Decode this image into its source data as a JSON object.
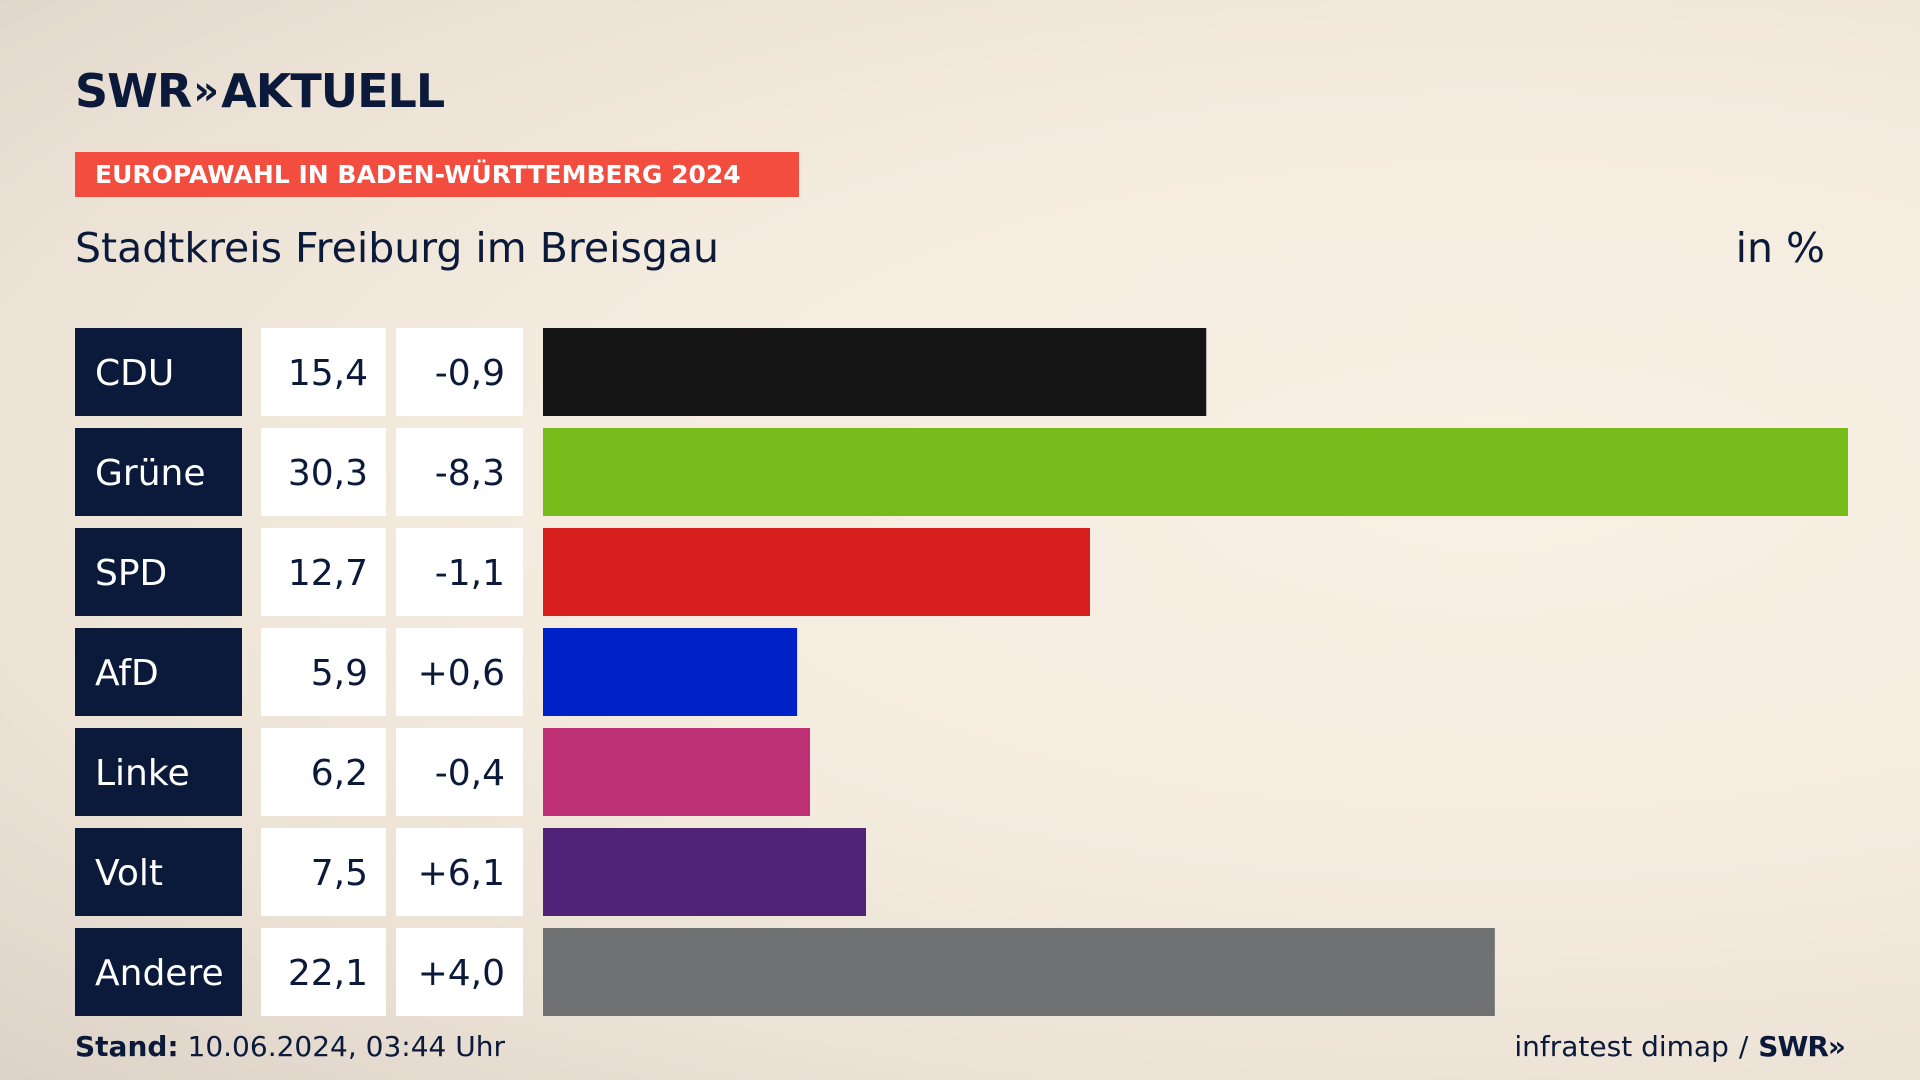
{
  "header": {
    "logo_swr": "SWR",
    "logo_chevrons": "»",
    "logo_aktuell": "AKTUELL",
    "banner": "EUROPAWAHL IN BADEN-WÜRTTEMBERG 2024",
    "title": "Stadtkreis Freiburg im Breisgau",
    "unit": "in %"
  },
  "chart_data": {
    "type": "bar",
    "orientation": "horizontal",
    "categories": [
      "CDU",
      "Grüne",
      "SPD",
      "AfD",
      "Linke",
      "Volt",
      "Andere"
    ],
    "values": [
      15.4,
      30.3,
      12.7,
      5.9,
      6.2,
      7.5,
      22.1
    ],
    "value_labels": [
      "15,4",
      "30,3",
      "12,7",
      "5,9",
      "6,2",
      "7,5",
      "22,1"
    ],
    "change_labels": [
      "-0,9",
      "-8,3",
      "-1,1",
      "+0,6",
      "-0,4",
      "+6,1",
      "+4,0"
    ],
    "changes": [
      -0.9,
      -8.3,
      -1.1,
      0.6,
      -0.4,
      6.1,
      4.0
    ],
    "colors": [
      "#141414",
      "#78bc1b",
      "#d71f1d",
      "#0021c8",
      "#bd3075",
      "#502379",
      "#707173"
    ],
    "xlim": [
      0,
      30.3
    ],
    "title": "Stadtkreis Freiburg im Breisgau",
    "unit": "in %",
    "grid": false,
    "legend": "none"
  },
  "footer": {
    "stand_label": "Stand:",
    "stand_value": "10.06.2024, 03:44 Uhr",
    "source": "infratest dimap",
    "separator": "/",
    "source_logo": "SWR»"
  },
  "colors": {
    "navy": "#0b1a3a",
    "banner_red": "#f24d3f",
    "cell_white": "#ffffff"
  }
}
